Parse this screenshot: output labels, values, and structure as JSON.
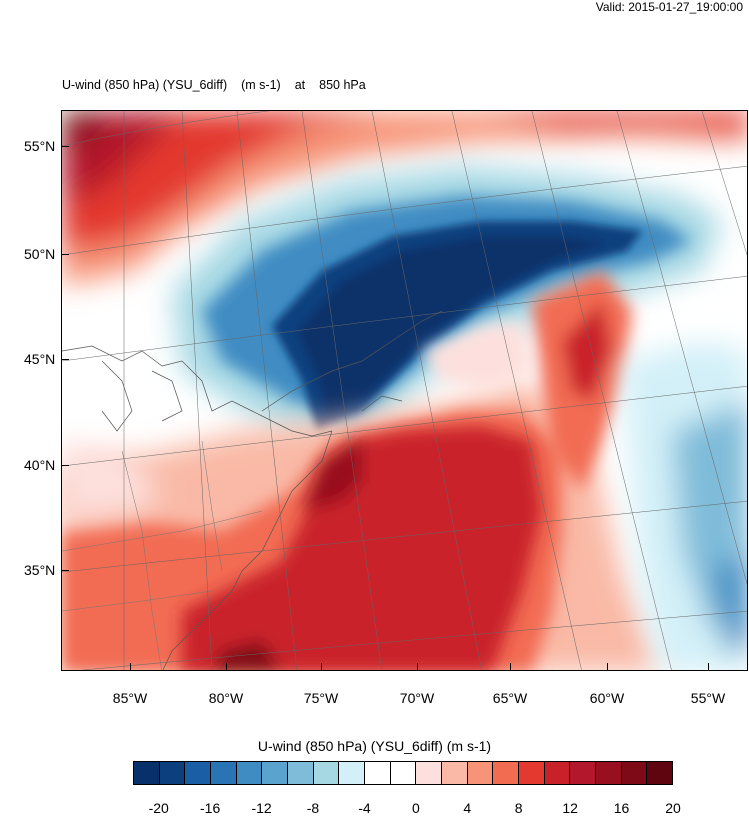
{
  "header": {
    "valid": "Valid: 2015-01-27_19:00:00",
    "field": "U-wind (850 hPa) (YSU_6diff)",
    "units": "(m s-1)",
    "at": "at",
    "level": "850 hPa"
  },
  "map": {
    "lat_labels": [
      "55°N",
      "50°N",
      "45°N",
      "40°N",
      "35°N"
    ],
    "lon_labels": [
      "85°W",
      "80°W",
      "75°W",
      "70°W",
      "65°W",
      "60°W",
      "55°W"
    ]
  },
  "colorbar": {
    "title": "U-wind (850 hPa) (YSU_6diff)  (m s-1)",
    "labels": [
      "-20",
      "-16",
      "-12",
      "-8",
      "-4",
      "0",
      "4",
      "8",
      "12",
      "16",
      "20"
    ],
    "colors": [
      "#08306b",
      "#0b3f7e",
      "#1a5fa5",
      "#2874b4",
      "#3f8cc3",
      "#5ba3cf",
      "#7fbcd9",
      "#a6d8e4",
      "#d3f0f8",
      "#ffffff",
      "#ffffff",
      "#fde0dd",
      "#f9b9a6",
      "#f79478",
      "#f26c52",
      "#e3392f",
      "#c9212a",
      "#b3172b",
      "#98101f",
      "#7d0a16",
      "#5e0510"
    ]
  }
}
